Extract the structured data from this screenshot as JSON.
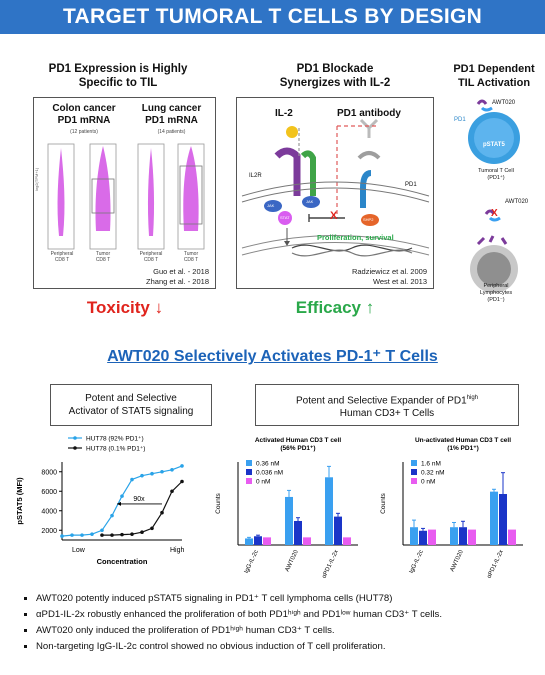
{
  "banner": "TARGET TUMORAL T CELLS BY DESIGN",
  "panel1": {
    "title1": "PD1 Expression is Highly",
    "title2": "Specific to TIL",
    "colon_title1": "Colon cancer",
    "colon_title2": "PD1 mRNA",
    "colon_note": "(12 patients)",
    "lung_title1": "Lung cancer",
    "lung_title2": "PD1 mRNA",
    "lung_note": "(14 patients)",
    "ylab": "log2(TPM+1)",
    "peripheral": "Peripheral",
    "tumor": "Tumor",
    "cd8": "CD8 T",
    "ref1": "Guo et al. - 2018",
    "ref2": "Zhang et al. - 2018",
    "footer": "Toxicity ↓"
  },
  "panel2": {
    "title1": "PD1 Blockade",
    "title2": "Synergizes with IL-2",
    "il2": "IL-2",
    "pd1ab": "PD1 antibody",
    "il2r": "IL2R",
    "pd1": "PD1",
    "jak1": "JAK",
    "jak2": "JAK",
    "stat": "STAT",
    "shp2": "SHP2",
    "x": "X",
    "prolif": "Proliferation, survival",
    "ref1": "Radziewicz et al. 2009",
    "ref2": "West et al. 2013",
    "footer": "Efficacy ↑"
  },
  "panel3": {
    "title1": "PD1 Dependent",
    "title2": "TIL Activation",
    "awt1": "AWT020",
    "pd1": "PD1",
    "pstat5": "pSTAT5",
    "tumoral1": "Tumoral T Cell",
    "tumoral2": "(PD1⁺)",
    "awt2": "AWT020",
    "x": "X",
    "periph1": "Peripheral",
    "periph2": "Lymphocytes",
    "periph3": "(PD1⁻)"
  },
  "section_title": "AWT020 Selectively Activates PD-1⁺ T Cells",
  "box1": {
    "line1": "Potent and Selective",
    "line2": "Activator of STAT5 signaling"
  },
  "box2": {
    "line1_pre": "Potent and Selective Expander of PD1",
    "line1_sup": "high",
    "line2": "Human CD3+ T Cells"
  },
  "chart_data": [
    {
      "type": "line",
      "title": "",
      "xlabel": "Concentration",
      "ylabel": "pSTAT5 (MFI)",
      "x_ticks": [
        "Low",
        "High"
      ],
      "yticks": [
        2000,
        4000,
        6000,
        8000
      ],
      "ylim": [
        1000,
        9000
      ],
      "annotation": "90x",
      "x": [
        0,
        1,
        2,
        3,
        4,
        5,
        6,
        7,
        8,
        9,
        10,
        11,
        12
      ],
      "series": [
        {
          "name": "HUT78 (92% PD1⁺)",
          "color": "#29a3e8",
          "values": [
            1400,
            1500,
            1500,
            1600,
            2000,
            3500,
            5500,
            7200,
            7600,
            7800,
            8000,
            8200,
            8600
          ]
        },
        {
          "name": "HUT78 (0.1% PD1⁺)",
          "color": "#111111",
          "values": [
            null,
            null,
            null,
            null,
            1500,
            1500,
            1550,
            1600,
            1800,
            2200,
            3800,
            6000,
            7000
          ]
        }
      ]
    },
    {
      "type": "bar",
      "title": "Activated Human CD3 T cell",
      "subtitle": "(56% PD1⁺)",
      "ylabel": "Counts",
      "categories": [
        "IgG-IL-2c",
        "AWT020",
        "αPD1-IL-2x"
      ],
      "series": [
        {
          "name": "0.36 nM",
          "color": "#3aa0f0",
          "values": [
            3,
            22,
            31
          ],
          "errors": [
            0.5,
            3,
            5
          ]
        },
        {
          "name": "0.036 nM",
          "color": "#1a35c8",
          "values": [
            4,
            11,
            13
          ],
          "errors": [
            0.5,
            1.5,
            1.5
          ]
        },
        {
          "name": "0 nM",
          "color": "#e85cf0",
          "values": [
            3.5,
            3.5,
            3.5
          ],
          "errors": [
            0,
            0,
            0
          ]
        }
      ],
      "ylim": [
        0,
        38
      ]
    },
    {
      "type": "bar",
      "title": "Un-activated Human CD3 T cell",
      "subtitle": "(1% PD1⁺)",
      "ylabel": "Counts",
      "categories": [
        "IgG-IL-2c",
        "AWT020",
        "αPD1-IL-2x"
      ],
      "series": [
        {
          "name": "1.6 nM",
          "color": "#3aa0f0",
          "values": [
            1.5,
            1.5,
            4.5
          ],
          "errors": [
            0.6,
            0.4,
            0.2
          ]
        },
        {
          "name": "0.32 nM",
          "color": "#1a35c8",
          "values": [
            1.2,
            1.5,
            4.3
          ],
          "errors": [
            0.2,
            0.5,
            1.8
          ]
        },
        {
          "name": "0 nM",
          "color": "#e85cf0",
          "values": [
            1.3,
            1.3,
            1.3
          ],
          "errors": [
            0,
            0,
            0
          ]
        }
      ],
      "ylim": [
        0,
        7
      ]
    }
  ],
  "bullets": [
    {
      "text": "AWT020 potently induced pSTAT5 signaling in PD1⁺ T cell lymphoma cells (HUT78)"
    },
    {
      "text": "αPD1-IL-2x robustly enhanced the proliferation of both PD1ʰⁱᵍʰ and PD1ˡᵒʷ human CD3⁺ T cells."
    },
    {
      "text": "AWT020 only induced the proliferation of PD1ʰⁱᵍʰ human CD3⁺ T cells."
    },
    {
      "text": "Non-targeting IgG-IL-2c control showed no obvious induction of T cell proliferation."
    }
  ]
}
